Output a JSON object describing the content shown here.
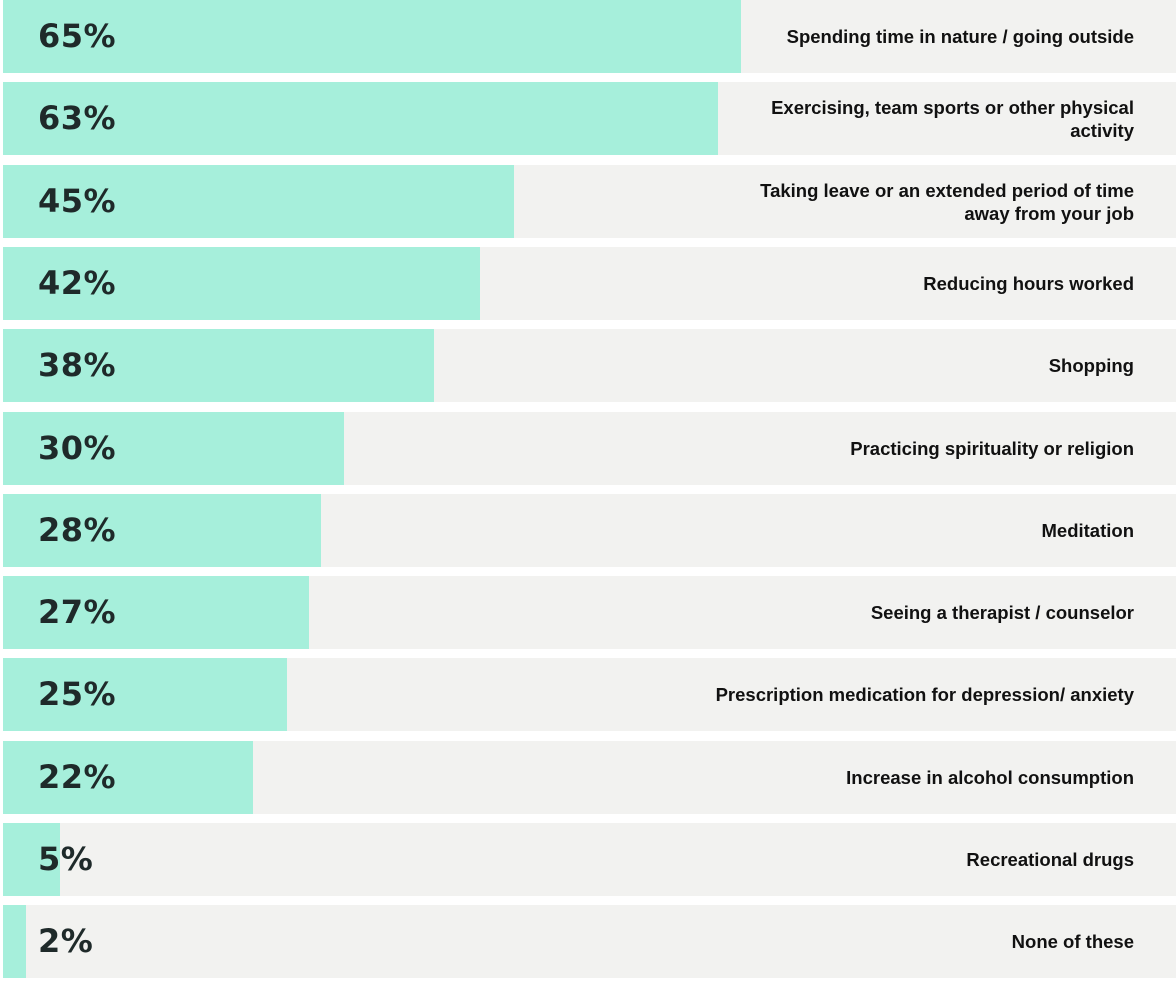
{
  "chart_data": {
    "type": "bar",
    "orientation": "horizontal",
    "xlim": [
      0,
      100
    ],
    "colors": {
      "bar": "#a6efdb",
      "track": "#f2f2f0",
      "value_text": "#1f2a2a",
      "label_text": "#111111"
    },
    "items": [
      {
        "value": 65,
        "value_label": "65%",
        "label": "Spending time in nature / going outside"
      },
      {
        "value": 63,
        "value_label": "63%",
        "label": "Exercising, team sports or other physical activity"
      },
      {
        "value": 45,
        "value_label": "45%",
        "label": "Taking leave or an extended period of time away from your job"
      },
      {
        "value": 42,
        "value_label": "42%",
        "label": "Reducing hours worked"
      },
      {
        "value": 38,
        "value_label": "38%",
        "label": "Shopping"
      },
      {
        "value": 30,
        "value_label": "30%",
        "label": "Practicing spirituality or religion"
      },
      {
        "value": 28,
        "value_label": "28%",
        "label": "Meditation"
      },
      {
        "value": 27,
        "value_label": "27%",
        "label": "Seeing a therapist / counselor"
      },
      {
        "value": 25,
        "value_label": "25%",
        "label": "Prescription medication for depression/ anxiety"
      },
      {
        "value": 22,
        "value_label": "22%",
        "label": "Increase in alcohol consumption"
      },
      {
        "value": 5,
        "value_label": "5%",
        "label": "Recreational drugs"
      },
      {
        "value": 2,
        "value_label": "2%",
        "label": "None of these"
      }
    ]
  }
}
